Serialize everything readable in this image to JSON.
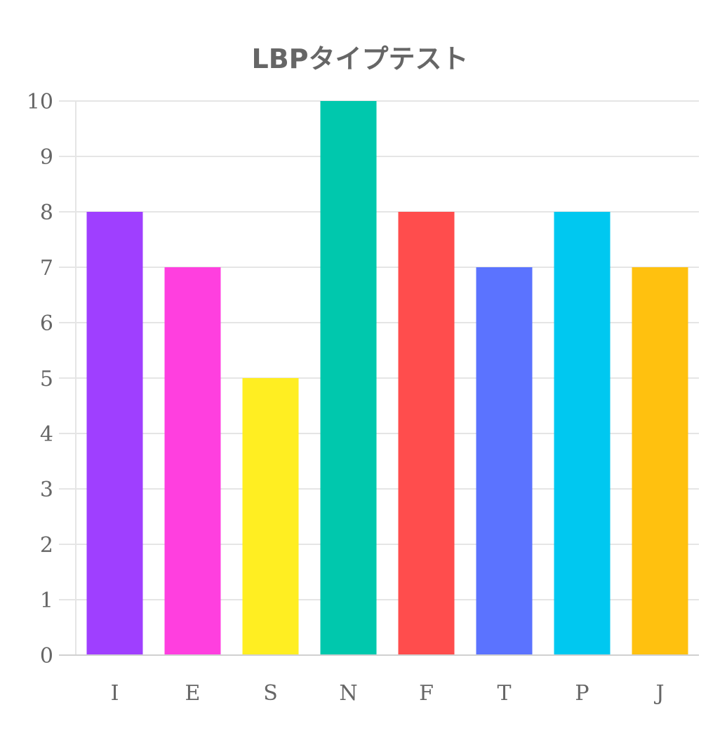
{
  "chart_data": {
    "type": "bar",
    "title": "LBPタイプテスト",
    "xlabel": "",
    "ylabel": "",
    "categories": [
      "I",
      "E",
      "S",
      "N",
      "F",
      "T",
      "P",
      "J"
    ],
    "values": [
      8,
      7,
      5,
      10,
      8,
      7,
      8,
      7
    ],
    "colors": [
      "#9f3fff",
      "#ff3fdf",
      "#ffee22",
      "#00c8ad",
      "#ff4d4d",
      "#5b73ff",
      "#00c8f0",
      "#ffc10f"
    ],
    "ylim": [
      0,
      10
    ],
    "yticks": [
      "0",
      "1",
      "2",
      "3",
      "4",
      "5",
      "6",
      "7",
      "8",
      "9",
      "10"
    ],
    "grid": true,
    "legend": "none"
  }
}
